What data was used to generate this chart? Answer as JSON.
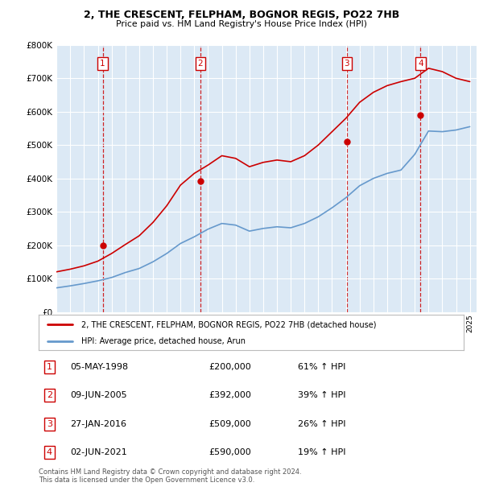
{
  "title1": "2, THE CRESCENT, FELPHAM, BOGNOR REGIS, PO22 7HB",
  "title2": "Price paid vs. HM Land Registry's House Price Index (HPI)",
  "ylim": [
    0,
    800000
  ],
  "yticks": [
    0,
    100000,
    200000,
    300000,
    400000,
    500000,
    600000,
    700000,
    800000
  ],
  "ytick_labels": [
    "£0",
    "£100K",
    "£200K",
    "£300K",
    "£400K",
    "£500K",
    "£600K",
    "£700K",
    "£800K"
  ],
  "background_color": "#dce9f5",
  "line1_color": "#cc0000",
  "line2_color": "#6699cc",
  "purchases": [
    {
      "year": 1998.35,
      "price": 200000,
      "label": "1"
    },
    {
      "year": 2005.44,
      "price": 392000,
      "label": "2"
    },
    {
      "year": 2016.07,
      "price": 509000,
      "label": "3"
    },
    {
      "year": 2021.42,
      "price": 590000,
      "label": "4"
    }
  ],
  "legend_line1": "2, THE CRESCENT, FELPHAM, BOGNOR REGIS, PO22 7HB (detached house)",
  "legend_line2": "HPI: Average price, detached house, Arun",
  "table_data": [
    [
      "1",
      "05-MAY-1998",
      "£200,000",
      "61% ↑ HPI"
    ],
    [
      "2",
      "09-JUN-2005",
      "£392,000",
      "39% ↑ HPI"
    ],
    [
      "3",
      "27-JAN-2016",
      "£509,000",
      "26% ↑ HPI"
    ],
    [
      "4",
      "02-JUN-2021",
      "£590,000",
      "19% ↑ HPI"
    ]
  ],
  "footnote": "Contains HM Land Registry data © Crown copyright and database right 2024.\nThis data is licensed under the Open Government Licence v3.0.",
  "hpi_years": [
    1995,
    1996,
    1997,
    1998,
    1999,
    2000,
    2001,
    2002,
    2003,
    2004,
    2005,
    2006,
    2007,
    2008,
    2009,
    2010,
    2011,
    2012,
    2013,
    2014,
    2015,
    2016,
    2017,
    2018,
    2019,
    2020,
    2021,
    2022,
    2023,
    2024,
    2025
  ],
  "hpi_values": [
    72000,
    78000,
    85000,
    93000,
    103000,
    118000,
    130000,
    150000,
    175000,
    205000,
    225000,
    248000,
    265000,
    260000,
    242000,
    250000,
    255000,
    252000,
    265000,
    285000,
    312000,
    342000,
    378000,
    400000,
    415000,
    425000,
    472000,
    542000,
    540000,
    545000,
    555000
  ],
  "prop_years": [
    1995,
    1996,
    1997,
    1998,
    1999,
    2000,
    2001,
    2002,
    2003,
    2004,
    2005,
    2006,
    2007,
    2008,
    2009,
    2010,
    2011,
    2012,
    2013,
    2014,
    2015,
    2016,
    2017,
    2018,
    2019,
    2020,
    2021,
    2022,
    2023,
    2024,
    2025
  ],
  "prop_values": [
    120000,
    128000,
    138000,
    152000,
    175000,
    202000,
    228000,
    268000,
    318000,
    380000,
    415000,
    440000,
    468000,
    460000,
    435000,
    448000,
    455000,
    450000,
    468000,
    500000,
    540000,
    580000,
    628000,
    658000,
    678000,
    690000,
    700000,
    730000,
    720000,
    700000,
    690000
  ]
}
